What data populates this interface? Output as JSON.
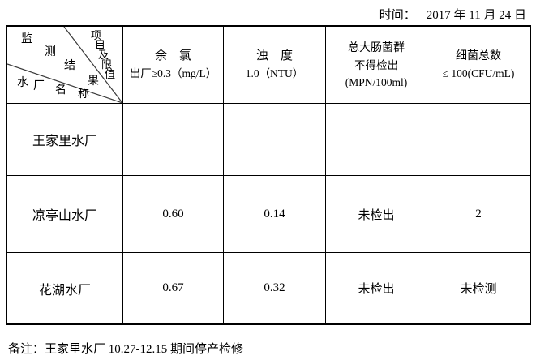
{
  "header": {
    "time_label": "时间：",
    "time_value": "2017 年 11 月 24 日"
  },
  "table": {
    "corner": {
      "results_label": "监测结果",
      "items_label": "项目及限值",
      "plants_label": "水厂名称"
    },
    "columns": [
      {
        "title": "余　氯",
        "limit1": "出厂≥0.3（mg/L）",
        "limit2": ""
      },
      {
        "title": "浊　度",
        "limit1": "1.0（NTU）",
        "limit2": ""
      },
      {
        "title": "总大肠菌群",
        "limit1": "不得检出",
        "limit2": "(MPN/100ml)"
      },
      {
        "title": "细菌总数",
        "limit1": "≤ 100(CFU/mL)",
        "limit2": ""
      }
    ],
    "rows": [
      {
        "name": "王家里水厂",
        "values": [
          "",
          "",
          "",
          ""
        ]
      },
      {
        "name": "凉亭山水厂",
        "values": [
          "0.60",
          "0.14",
          "未检出",
          "2"
        ]
      },
      {
        "name": "花湖水厂",
        "values": [
          "0.67",
          "0.32",
          "未检出",
          "未检测"
        ]
      }
    ]
  },
  "footer": {
    "note": "备注：王家里水厂 10.27-12.15 期间停产检修"
  }
}
